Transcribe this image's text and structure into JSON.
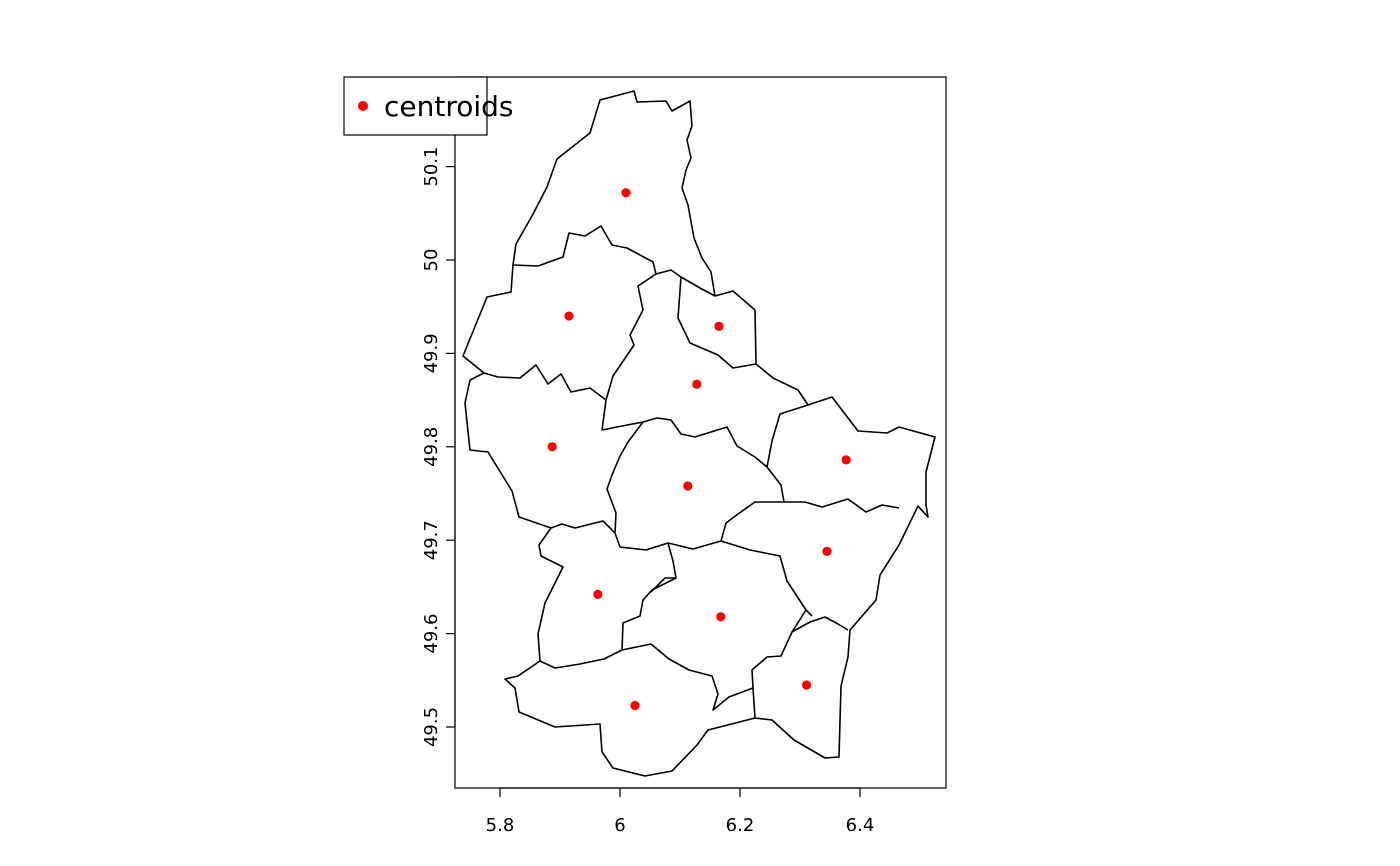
{
  "map": {
    "projection": "lon/lat (unprojected)",
    "x_axis": {
      "ticks": [
        {
          "value": 5.8,
          "label": "5.8"
        },
        {
          "value": 6.0,
          "label": "6"
        },
        {
          "value": 6.2,
          "label": "6.2"
        },
        {
          "value": 6.4,
          "label": "6.4"
        }
      ]
    },
    "y_axis": {
      "ticks": [
        {
          "value": 49.5,
          "label": "49.5"
        },
        {
          "value": 49.6,
          "label": "49.6"
        },
        {
          "value": 49.7,
          "label": "49.7"
        },
        {
          "value": 49.8,
          "label": "49.8"
        },
        {
          "value": 49.9,
          "label": "49.9"
        },
        {
          "value": 50.0,
          "label": "50"
        },
        {
          "value": 50.1,
          "label": "50.1"
        }
      ]
    },
    "legend": {
      "placement": "top-left",
      "label": "centroids",
      "marker_color": "#ff0000"
    },
    "boundary_color": "#000000",
    "centroid_color": "#ff0000",
    "centroids": [
      {
        "lon": 6.01,
        "lat": 50.072
      },
      {
        "lon": 5.915,
        "lat": 49.94
      },
      {
        "lon": 6.165,
        "lat": 49.929
      },
      {
        "lon": 6.128,
        "lat": 49.867
      },
      {
        "lon": 5.887,
        "lat": 49.8
      },
      {
        "lon": 6.377,
        "lat": 49.786
      },
      {
        "lon": 6.113,
        "lat": 49.758
      },
      {
        "lon": 6.345,
        "lat": 49.688
      },
      {
        "lon": 5.963,
        "lat": 49.642
      },
      {
        "lon": 6.168,
        "lat": 49.618
      },
      {
        "lon": 6.311,
        "lat": 49.545
      },
      {
        "lon": 6.025,
        "lat": 49.523
      }
    ]
  }
}
